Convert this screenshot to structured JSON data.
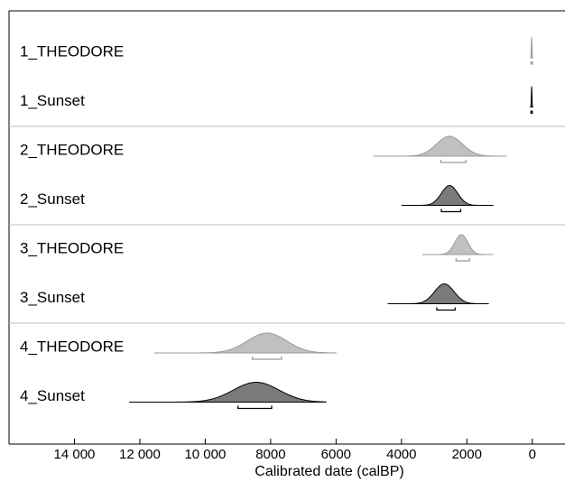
{
  "chart_data": {
    "type": "multiplot",
    "x_label": "Calibrated date (calBP)",
    "xlim": [
      16000,
      -1000
    ],
    "xticks": [
      {
        "value": 14000,
        "label": "14 000"
      },
      {
        "value": 12000,
        "label": "12 000"
      },
      {
        "value": 10000,
        "label": "10 000"
      },
      8000,
      6000,
      4000,
      2000,
      0
    ],
    "series": [
      {
        "name": "1_THEODORE",
        "color": "#c0c0c0",
        "edge": "#9a9a9a",
        "range": [
          60,
          -20
        ],
        "mode": 20,
        "sd": 10,
        "hpd": [
          40,
          0
        ]
      },
      {
        "name": "1_Sunset",
        "color": "#7a7a7a",
        "edge": "#000000",
        "range": [
          60,
          -20
        ],
        "mode": 20,
        "sd": 10,
        "hpd": [
          40,
          0
        ]
      },
      {
        "name": "2_THEODORE",
        "color": "#c0c0c0",
        "edge": "#9a9a9a",
        "range": [
          4860,
          780
        ],
        "mode": 2530,
        "sd": 400,
        "hpd": [
          2800,
          2030
        ]
      },
      {
        "name": "2_Sunset",
        "color": "#7a7a7a",
        "edge": "#000000",
        "range": [
          4000,
          1190
        ],
        "mode": 2530,
        "sd": 250,
        "hpd": [
          2780,
          2190
        ]
      },
      {
        "name": "3_THEODORE",
        "color": "#c0c0c0",
        "edge": "#9a9a9a",
        "range": [
          3360,
          1190
        ],
        "mode": 2170,
        "sd": 200,
        "hpd": [
          2330,
          1920
        ]
      },
      {
        "name": "3_Sunset",
        "color": "#7a7a7a",
        "edge": "#000000",
        "range": [
          4420,
          1330
        ],
        "mode": 2690,
        "sd": 300,
        "hpd": [
          2920,
          2360
        ]
      },
      {
        "name": "4_THEODORE",
        "color": "#c0c0c0",
        "edge": "#9a9a9a",
        "range": [
          11560,
          6000
        ],
        "mode": 8110,
        "sd": 600,
        "hpd": [
          8560,
          7670
        ]
      },
      {
        "name": "4_Sunset",
        "color": "#7a7a7a",
        "edge": "#000000",
        "range": [
          12330,
          6310
        ],
        "mode": 8440,
        "sd": 700,
        "hpd": [
          9000,
          7970
        ]
      }
    ]
  }
}
